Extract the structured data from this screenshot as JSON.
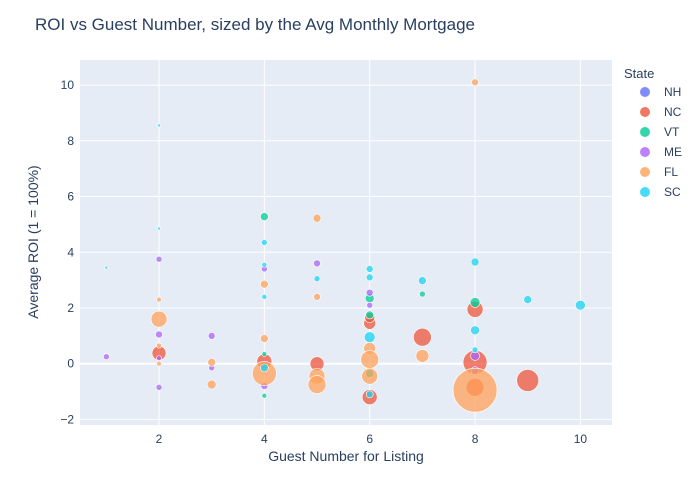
{
  "chart_data": {
    "type": "scatter",
    "title": "ROI vs Guest Number, sized by the Avg Monthly Mortgage",
    "xlabel": "Guest Number for Listing",
    "ylabel": "Average ROI (1 = 100%)",
    "xlim": [
      0.5,
      10.6
    ],
    "ylim": [
      -2.2,
      10.9
    ],
    "xticks": [
      2,
      4,
      6,
      8,
      10
    ],
    "yticks": [
      -2,
      0,
      2,
      4,
      6,
      8,
      10
    ],
    "tick_labels_x": [
      "2",
      "4",
      "6",
      "8",
      "10"
    ],
    "tick_labels_y": [
      "−2",
      "0",
      "2",
      "4",
      "6",
      "8",
      "10"
    ],
    "grid": true,
    "legend": {
      "title": "State",
      "placement": "right"
    },
    "series": [
      {
        "name": "NH",
        "color": "#636efa",
        "points": []
      },
      {
        "name": "NC",
        "color": "#ef553b",
        "points": [
          {
            "x": 2,
            "y": 0.38,
            "size": 14
          },
          {
            "x": 4,
            "y": 0.08,
            "size": 15
          },
          {
            "x": 5,
            "y": 0.0,
            "size": 14
          },
          {
            "x": 6,
            "y": 1.45,
            "size": 12
          },
          {
            "x": 6,
            "y": 1.65,
            "size": 10
          },
          {
            "x": 6,
            "y": -1.2,
            "size": 15
          },
          {
            "x": 7,
            "y": 0.95,
            "size": 18
          },
          {
            "x": 8,
            "y": 0.05,
            "size": 24
          },
          {
            "x": 8,
            "y": 1.95,
            "size": 16
          },
          {
            "x": 8,
            "y": -0.85,
            "size": 18
          },
          {
            "x": 9,
            "y": -0.6,
            "size": 22
          }
        ]
      },
      {
        "name": "VT",
        "color": "#00cc96",
        "points": [
          {
            "x": 4,
            "y": 5.28,
            "size": 8
          },
          {
            "x": 4,
            "y": 0.35,
            "size": 5
          },
          {
            "x": 4,
            "y": -1.15,
            "size": 5
          },
          {
            "x": 6,
            "y": 2.35,
            "size": 9
          },
          {
            "x": 6,
            "y": 1.75,
            "size": 8
          },
          {
            "x": 6,
            "y": -0.35,
            "size": 8
          },
          {
            "x": 7,
            "y": 2.5,
            "size": 6
          },
          {
            "x": 8,
            "y": 2.2,
            "size": 10
          }
        ]
      },
      {
        "name": "ME",
        "color": "#ab63fa",
        "points": [
          {
            "x": 1,
            "y": 0.25,
            "size": 6
          },
          {
            "x": 2,
            "y": 3.75,
            "size": 6
          },
          {
            "x": 2,
            "y": 1.05,
            "size": 7
          },
          {
            "x": 2,
            "y": 0.2,
            "size": 5
          },
          {
            "x": 2,
            "y": -0.85,
            "size": 6
          },
          {
            "x": 3,
            "y": 1.0,
            "size": 7
          },
          {
            "x": 3,
            "y": -0.15,
            "size": 6
          },
          {
            "x": 4,
            "y": 3.4,
            "size": 6
          },
          {
            "x": 4,
            "y": -0.8,
            "size": 7
          },
          {
            "x": 5,
            "y": 3.6,
            "size": 7
          },
          {
            "x": 6,
            "y": 2.55,
            "size": 7
          },
          {
            "x": 6,
            "y": 2.1,
            "size": 6
          },
          {
            "x": 8,
            "y": 0.28,
            "size": 9
          },
          {
            "x": 8,
            "y": -0.25,
            "size": 8
          }
        ]
      },
      {
        "name": "FL",
        "color": "#ffa15a",
        "points": [
          {
            "x": 2,
            "y": 2.3,
            "size": 5
          },
          {
            "x": 2,
            "y": 1.6,
            "size": 16
          },
          {
            "x": 2,
            "y": 0.65,
            "size": 5
          },
          {
            "x": 2,
            "y": 0.0,
            "size": 5
          },
          {
            "x": 3,
            "y": 0.05,
            "size": 8
          },
          {
            "x": 3,
            "y": -0.75,
            "size": 9
          },
          {
            "x": 4,
            "y": 2.85,
            "size": 8
          },
          {
            "x": 4,
            "y": 0.9,
            "size": 8
          },
          {
            "x": 4,
            "y": -0.35,
            "size": 24
          },
          {
            "x": 5,
            "y": 5.22,
            "size": 8
          },
          {
            "x": 5,
            "y": 2.4,
            "size": 7
          },
          {
            "x": 5,
            "y": -0.45,
            "size": 16
          },
          {
            "x": 5,
            "y": -0.75,
            "size": 18
          },
          {
            "x": 6,
            "y": 0.55,
            "size": 12
          },
          {
            "x": 6,
            "y": 0.15,
            "size": 18
          },
          {
            "x": 6,
            "y": -0.45,
            "size": 16
          },
          {
            "x": 7,
            "y": 0.28,
            "size": 13
          },
          {
            "x": 8,
            "y": 10.1,
            "size": 7
          },
          {
            "x": 8,
            "y": -0.95,
            "size": 44
          }
        ]
      },
      {
        "name": "SC",
        "color": "#19d3f3",
        "points": [
          {
            "x": 1,
            "y": 3.45,
            "size": 3
          },
          {
            "x": 2,
            "y": 8.55,
            "size": 3
          },
          {
            "x": 2,
            "y": 4.85,
            "size": 3
          },
          {
            "x": 4,
            "y": 4.35,
            "size": 6
          },
          {
            "x": 4,
            "y": 3.55,
            "size": 5
          },
          {
            "x": 4,
            "y": 2.4,
            "size": 5
          },
          {
            "x": 4,
            "y": -0.15,
            "size": 8
          },
          {
            "x": 5,
            "y": 3.05,
            "size": 6
          },
          {
            "x": 6,
            "y": 3.4,
            "size": 7
          },
          {
            "x": 6,
            "y": 3.1,
            "size": 7
          },
          {
            "x": 6,
            "y": 0.95,
            "size": 11
          },
          {
            "x": 6,
            "y": -1.1,
            "size": 7
          },
          {
            "x": 7,
            "y": 2.98,
            "size": 8
          },
          {
            "x": 8,
            "y": 3.65,
            "size": 8
          },
          {
            "x": 8,
            "y": 1.2,
            "size": 9
          },
          {
            "x": 8,
            "y": 0.5,
            "size": 6
          },
          {
            "x": 9,
            "y": 2.3,
            "size": 8
          },
          {
            "x": 10,
            "y": 2.1,
            "size": 10
          }
        ]
      }
    ]
  }
}
